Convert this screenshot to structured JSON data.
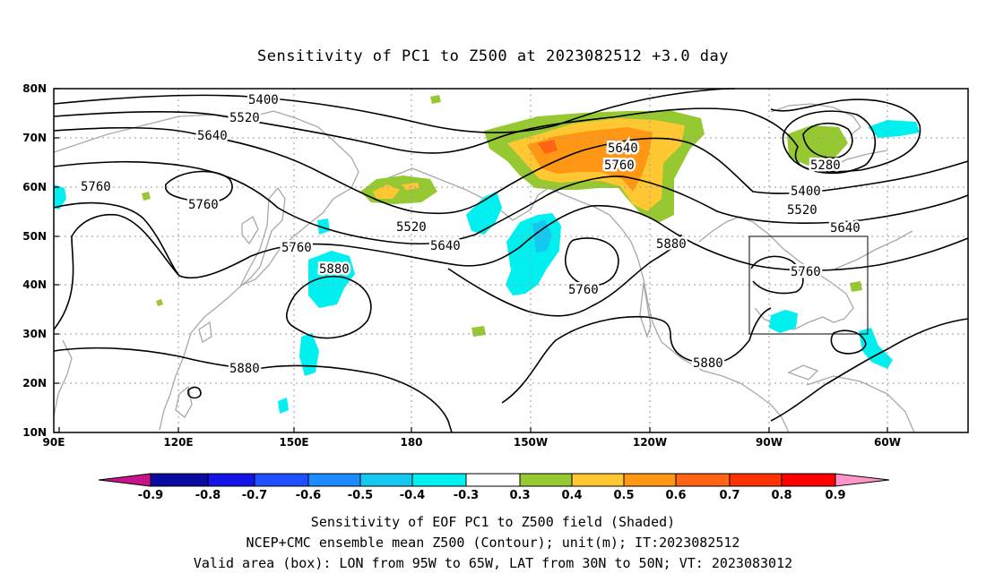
{
  "title": "Sensitivity of PC1 to Z500 at 2023082512 +3.0 day",
  "map": {
    "lon_range": [
      90,
      310
    ],
    "lat_range": [
      10,
      80
    ],
    "lat_ticks": [
      "80N",
      "70N",
      "60N",
      "50N",
      "40N",
      "30N",
      "20N",
      "10N"
    ],
    "lon_ticks": [
      "90E",
      "120E",
      "150E",
      "180",
      "150W",
      "120W",
      "90W",
      "60W"
    ],
    "grid": "dotted",
    "contour_labels": [
      {
        "text": "5400"
      },
      {
        "text": "5520"
      },
      {
        "text": "5640"
      },
      {
        "text": "5760"
      },
      {
        "text": "5760"
      },
      {
        "text": "5520"
      },
      {
        "text": "5640"
      },
      {
        "text": "5760"
      },
      {
        "text": "5880"
      },
      {
        "text": "5880"
      },
      {
        "text": "5640"
      },
      {
        "text": "5760"
      },
      {
        "text": "5760"
      },
      {
        "text": "5880"
      },
      {
        "text": "5880"
      },
      {
        "text": "5280"
      },
      {
        "text": "5400"
      },
      {
        "text": "5520"
      },
      {
        "text": "5640"
      },
      {
        "text": "5760"
      }
    ],
    "box": {
      "lon_from": "95W",
      "lon_to": "65W",
      "lat_from": "30N",
      "lat_to": "50N"
    }
  },
  "colorbar": {
    "colors": [
      "#0a0aa0",
      "#1414e6",
      "#1e50ff",
      "#1e8cff",
      "#14c8f0",
      "#00f0f0",
      "#ffffff",
      "#96c832",
      "#ffc832",
      "#ff9614",
      "#ff6414",
      "#ff3200",
      "#ff0000"
    ],
    "low_arrow": "#c8148c",
    "high_arrow": "#ff96c8",
    "labels": [
      "-0.9",
      "-0.8",
      "-0.7",
      "-0.6",
      "-0.5",
      "-0.4",
      "-0.3",
      "0.3",
      "0.4",
      "0.5",
      "0.6",
      "0.7",
      "0.8",
      "0.9"
    ]
  },
  "footer": [
    "Sensitivity of EOF PC1 to Z500 field (Shaded)",
    "NCEP+CMC ensemble mean Z500 (Contour); unit(m); IT:2023082512",
    "Valid area (box): LON from 95W to 65W, LAT from 30N to 50N; VT: 2023083012"
  ]
}
